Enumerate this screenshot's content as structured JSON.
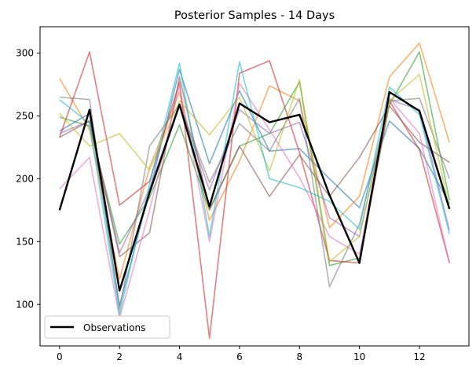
{
  "chart_data": {
    "type": "line",
    "title": "Posterior Samples - 14 Days",
    "xlabel": "",
    "ylabel": "",
    "x": [
      0,
      1,
      2,
      3,
      4,
      5,
      6,
      7,
      8,
      9,
      10,
      11,
      12,
      13
    ],
    "xlim": [
      -0.65,
      13.65
    ],
    "ylim": [
      67,
      321
    ],
    "xticks": [
      0,
      2,
      4,
      6,
      8,
      10,
      12
    ],
    "yticks": [
      100,
      150,
      200,
      250,
      300
    ],
    "grid": false,
    "legend": {
      "placement": "lower-left",
      "entries": [
        "Observations"
      ]
    },
    "observations": {
      "name": "Observations",
      "color": "#000000",
      "values": [
        175,
        255,
        111,
        189,
        259,
        178,
        260,
        245,
        251,
        187,
        133,
        269,
        254,
        176
      ]
    },
    "samples": [
      {
        "color": "#1f77b4",
        "values": [
          238,
          252,
          99,
          190,
          287,
          212,
          270,
          222,
          224,
          200,
          177,
          246,
          224,
          180
        ]
      },
      {
        "color": "#ff7f0e",
        "values": [
          280,
          239,
          120,
          209,
          269,
          167,
          214,
          274,
          262,
          161,
          186,
          281,
          308,
          229
        ]
      },
      {
        "color": "#2ca02c",
        "values": [
          249,
          242,
          148,
          185,
          243,
          175,
          226,
          236,
          277,
          131,
          137,
          259,
          301,
          183
        ]
      },
      {
        "color": "#d62728",
        "values": [
          233,
          301,
          179,
          198,
          277,
          73,
          284,
          294,
          221,
          135,
          133,
          262,
          223,
          133
        ]
      },
      {
        "color": "#9467bd",
        "values": [
          236,
          246,
          141,
          192,
          260,
          191,
          255,
          236,
          245,
          169,
          154,
          263,
          255,
          159
        ]
      },
      {
        "color": "#8c564b",
        "values": [
          233,
          246,
          138,
          157,
          281,
          176,
          226,
          186,
          219,
          186,
          217,
          258,
          229,
          213
        ]
      },
      {
        "color": "#e377c2",
        "values": [
          192,
          217,
          89,
          175,
          274,
          150,
          276,
          239,
          201,
          154,
          140,
          264,
          236,
          133
        ]
      },
      {
        "color": "#7f7f7f",
        "values": [
          265,
          263,
          96,
          226,
          259,
          197,
          244,
          222,
          264,
          114,
          164,
          262,
          264,
          200
        ]
      },
      {
        "color": "#bcbd22",
        "values": [
          252,
          226,
          236,
          207,
          262,
          235,
          265,
          206,
          279,
          134,
          154,
          262,
          283,
          177
        ]
      },
      {
        "color": "#17becf",
        "values": [
          263,
          244,
          92,
          196,
          292,
          154,
          293,
          200,
          193,
          182,
          160,
          273,
          251,
          156
        ]
      }
    ]
  }
}
